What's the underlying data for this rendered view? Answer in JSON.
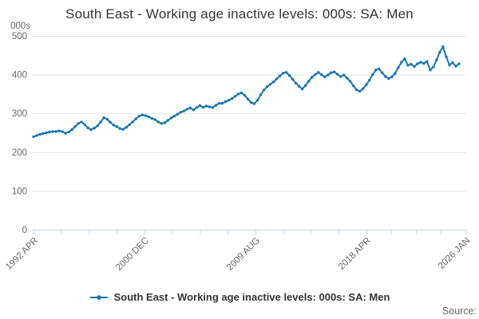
{
  "header": {
    "title": "South East - Working age inactive levels: 000s: SA: Men"
  },
  "legend": {
    "label": "South East - Working age inactive levels: 000s: SA: Men"
  },
  "footer": {
    "source_label": "Source:"
  },
  "chart_data": {
    "type": "line",
    "title": "South East - Working age inactive levels: 000s: SA: Men",
    "ylabel": "000s",
    "xlabel": "",
    "ylim": [
      0,
      500
    ],
    "grid": true,
    "legend_position": "bottom-center",
    "y_axis": {
      "unit_label": "000s",
      "tick_values": [
        0,
        100,
        200,
        300,
        400,
        500
      ],
      "tick_labels": [
        "0",
        "100",
        "200",
        "300",
        "400",
        "500"
      ]
    },
    "x_axis": {
      "tick_labels": [
        "1992 APR",
        "2000 DEC",
        "2009 AUG",
        "2018 APR",
        "2026 JAN"
      ],
      "tick_positions": [
        1992.25,
        2000.9167,
        2009.5833,
        2018.25,
        2026.0
      ],
      "minor_ticks_between_labels": 3,
      "range": [
        1992.25,
        2026.0
      ],
      "label_rotation_deg": -45
    },
    "series": [
      {
        "name": "South East - Working age inactive levels: 000s: SA: Men",
        "color": "#1976b4",
        "marker": "circle",
        "start": 1992.25,
        "step": 0.25,
        "frequency": "quarterly (values in thousands, estimated from plot)",
        "values": [
          240,
          243,
          246,
          248,
          250,
          252,
          253,
          253,
          255,
          253,
          249,
          252,
          258,
          266,
          274,
          278,
          271,
          263,
          258,
          262,
          268,
          278,
          289,
          285,
          277,
          270,
          266,
          261,
          259,
          264,
          271,
          278,
          286,
          293,
          296,
          294,
          291,
          287,
          284,
          278,
          274,
          276,
          282,
          288,
          293,
          298,
          303,
          306,
          311,
          314,
          309,
          315,
          320,
          316,
          319,
          317,
          315,
          321,
          326,
          326,
          330,
          334,
          338,
          344,
          350,
          353,
          347,
          337,
          328,
          325,
          334,
          348,
          360,
          369,
          375,
          381,
          389,
          397,
          404,
          406,
          398,
          388,
          378,
          370,
          363,
          372,
          383,
          393,
          400,
          406,
          400,
          394,
          399,
          405,
          407,
          401,
          395,
          399,
          391,
          383,
          371,
          361,
          357,
          364,
          374,
          386,
          400,
          412,
          415,
          405,
          395,
          390,
          394,
          403,
          418,
          432,
          441,
          424,
          427,
          421,
          428,
          432,
          429,
          434,
          412,
          420,
          438,
          458,
          472,
          446,
          425,
          431,
          422,
          428
        ]
      }
    ],
    "colors": {
      "line": "#1976b4",
      "grid": "#e6e6e6",
      "axis": "#ccd6eb",
      "tick_text": "#666666",
      "title_text": "#333333"
    }
  }
}
